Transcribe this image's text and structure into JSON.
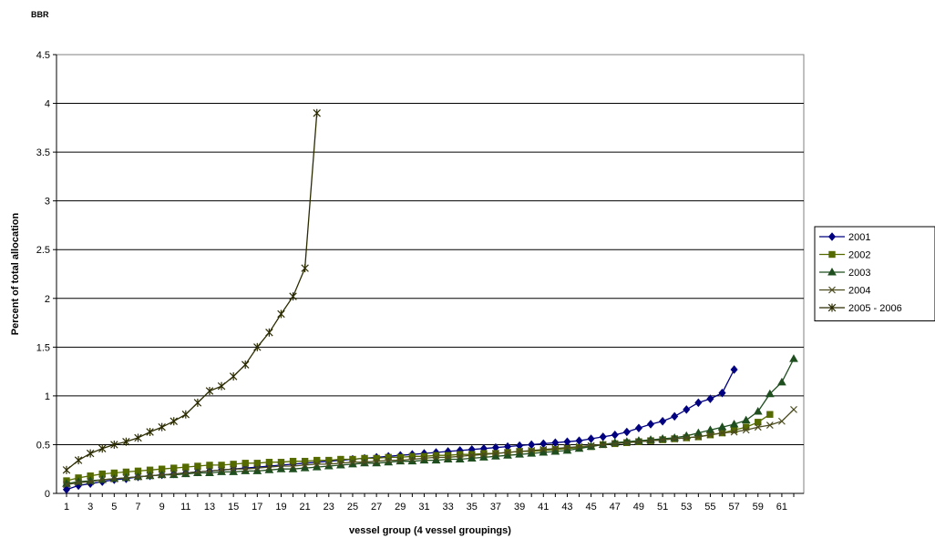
{
  "chart_data": {
    "type": "line",
    "title": "BBR",
    "xlabel": "vessel group (4 vessel groupings)",
    "ylabel": "Percent of total allocation",
    "ylim": [
      0,
      4.5
    ],
    "xlim": [
      1,
      62
    ],
    "y_ticks": [
      "0",
      "0.5",
      "1",
      "1.5",
      "2",
      "2.5",
      "3",
      "3.5",
      "4",
      "4.5"
    ],
    "x_ticks": [
      "1",
      "3",
      "5",
      "7",
      "9",
      "11",
      "13",
      "15",
      "17",
      "19",
      "21",
      "23",
      "25",
      "27",
      "29",
      "31",
      "33",
      "35",
      "37",
      "39",
      "41",
      "43",
      "45",
      "47",
      "49",
      "51",
      "53",
      "55",
      "57",
      "59",
      "61"
    ],
    "grid": "horizontal",
    "legend_position": "right",
    "series": [
      {
        "name": "2001",
        "color": "#000080",
        "marker": "diamond",
        "values": [
          0.04,
          0.08,
          0.1,
          0.12,
          0.14,
          0.15,
          0.17,
          0.18,
          0.19,
          0.2,
          0.21,
          0.22,
          0.23,
          0.24,
          0.25,
          0.26,
          0.27,
          0.28,
          0.29,
          0.3,
          0.31,
          0.32,
          0.33,
          0.34,
          0.35,
          0.36,
          0.37,
          0.38,
          0.39,
          0.4,
          0.41,
          0.42,
          0.43,
          0.44,
          0.45,
          0.46,
          0.47,
          0.48,
          0.49,
          0.5,
          0.51,
          0.52,
          0.53,
          0.54,
          0.56,
          0.58,
          0.6,
          0.63,
          0.67,
          0.71,
          0.74,
          0.79,
          0.86,
          0.93,
          0.97,
          1.03,
          1.27
        ]
      },
      {
        "name": "2002",
        "color": "#556B00",
        "marker": "square",
        "values": [
          0.13,
          0.16,
          0.18,
          0.2,
          0.21,
          0.22,
          0.23,
          0.24,
          0.25,
          0.26,
          0.27,
          0.28,
          0.29,
          0.29,
          0.3,
          0.31,
          0.31,
          0.32,
          0.32,
          0.33,
          0.33,
          0.34,
          0.34,
          0.35,
          0.35,
          0.36,
          0.36,
          0.37,
          0.37,
          0.38,
          0.38,
          0.39,
          0.39,
          0.4,
          0.4,
          0.41,
          0.41,
          0.42,
          0.43,
          0.43,
          0.44,
          0.45,
          0.46,
          0.47,
          0.48,
          0.5,
          0.51,
          0.52,
          0.53,
          0.54,
          0.55,
          0.56,
          0.57,
          0.58,
          0.6,
          0.62,
          0.65,
          0.68,
          0.73,
          0.81
        ]
      },
      {
        "name": "2003",
        "color": "#1F4E1F",
        "marker": "triangle",
        "values": [
          0.1,
          0.12,
          0.13,
          0.14,
          0.15,
          0.16,
          0.17,
          0.18,
          0.19,
          0.19,
          0.2,
          0.21,
          0.21,
          0.22,
          0.22,
          0.23,
          0.23,
          0.24,
          0.25,
          0.25,
          0.26,
          0.27,
          0.28,
          0.29,
          0.3,
          0.31,
          0.31,
          0.32,
          0.33,
          0.33,
          0.34,
          0.34,
          0.35,
          0.35,
          0.36,
          0.37,
          0.38,
          0.39,
          0.4,
          0.41,
          0.42,
          0.43,
          0.44,
          0.46,
          0.48,
          0.5,
          0.52,
          0.53,
          0.54,
          0.55,
          0.56,
          0.57,
          0.59,
          0.62,
          0.65,
          0.68,
          0.71,
          0.75,
          0.84,
          1.02,
          1.14,
          1.38
        ]
      },
      {
        "name": "2004",
        "color": "#4B4B1E",
        "marker": "x",
        "values": [
          0.09,
          0.11,
          0.12,
          0.14,
          0.15,
          0.16,
          0.17,
          0.18,
          0.19,
          0.2,
          0.21,
          0.22,
          0.23,
          0.24,
          0.25,
          0.25,
          0.26,
          0.27,
          0.28,
          0.28,
          0.29,
          0.3,
          0.3,
          0.31,
          0.32,
          0.32,
          0.33,
          0.34,
          0.34,
          0.35,
          0.36,
          0.37,
          0.37,
          0.38,
          0.39,
          0.4,
          0.41,
          0.42,
          0.43,
          0.44,
          0.45,
          0.46,
          0.47,
          0.48,
          0.49,
          0.5,
          0.51,
          0.52,
          0.53,
          0.54,
          0.55,
          0.56,
          0.57,
          0.58,
          0.6,
          0.62,
          0.63,
          0.65,
          0.68,
          0.7,
          0.74,
          0.86
        ]
      },
      {
        "name": "2005 - 2006",
        "color": "#2B2B00",
        "marker": "star",
        "values": [
          0.24,
          0.34,
          0.41,
          0.46,
          0.5,
          0.53,
          0.57,
          0.63,
          0.68,
          0.74,
          0.81,
          0.93,
          1.05,
          1.1,
          1.2,
          1.32,
          1.5,
          1.65,
          1.84,
          2.02,
          2.31,
          3.9
        ]
      }
    ]
  }
}
